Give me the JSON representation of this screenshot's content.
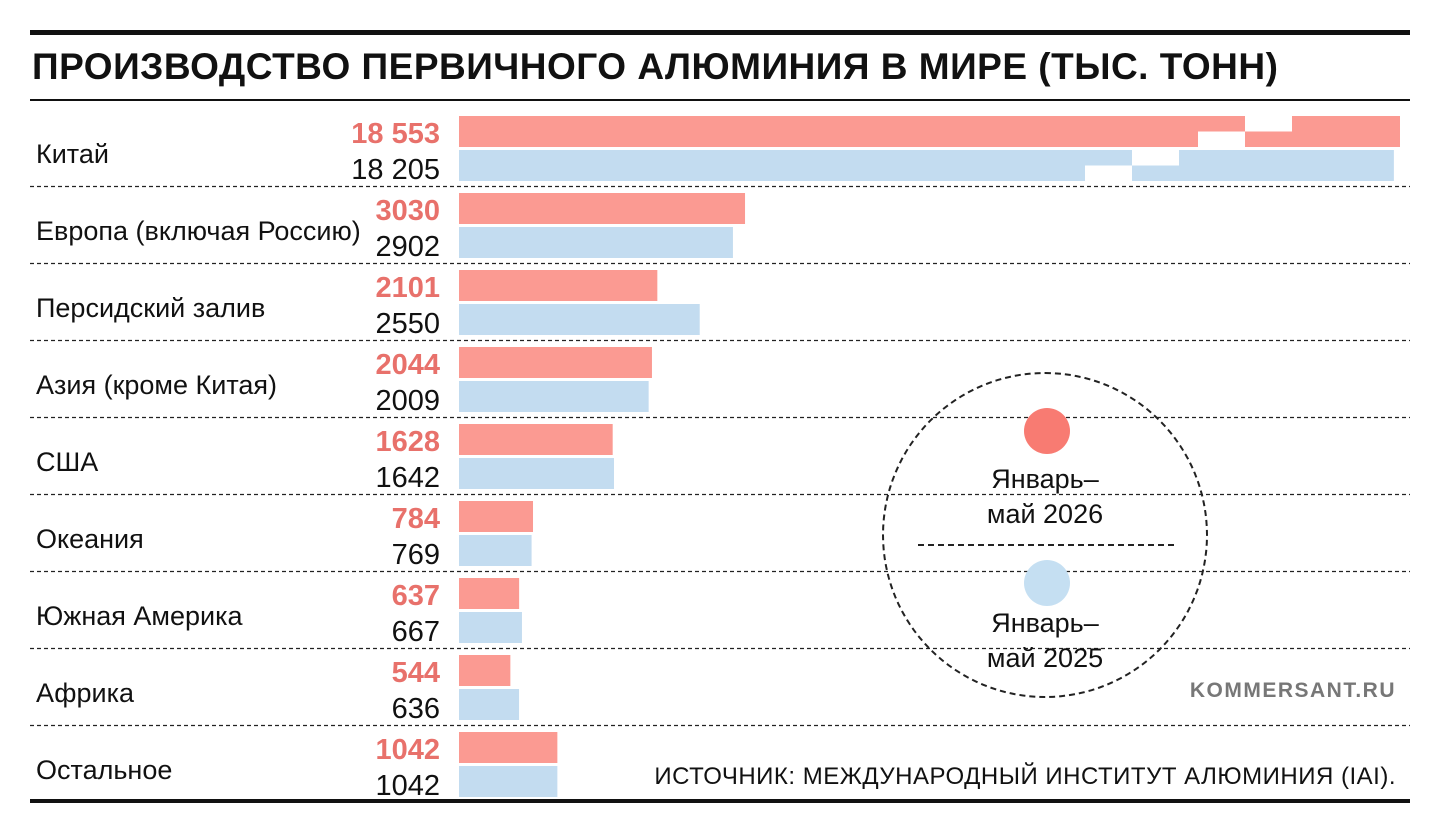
{
  "title": "ПРОИЗВОДСТВО ПЕРВИЧНОГО АЛЮМИНИЯ В МИРЕ (ТЫС. ТОНН)",
  "colors": {
    "series_2026": "#fb9a92",
    "series_2026_label": "#e8716b",
    "series_2025": "#c3dcf0",
    "legend_2026_dot": "#f87b72",
    "legend_2025_dot": "#c5dff2"
  },
  "legend": {
    "item1": "Январь–май 2026",
    "item2": "Январь–май 2025"
  },
  "credit": "KOMMERSANT.RU",
  "source": "ИСТОЧНИК: МЕЖДУНАРОДНЫЙ ИНСТИТУТ АЛЮМИНИЯ (IAI).",
  "chart_data": {
    "type": "bar",
    "orientation": "horizontal",
    "title": "ПРОИЗВОДСТВО ПЕРВИЧНОГО АЛЮМИНИЯ В МИРЕ (ТЫС. ТОНН)",
    "categories": [
      "Китай",
      "Европа (включая Россию)",
      "Персидский залив",
      "Азия (кроме Китая)",
      "США",
      "Океания",
      "Южная Америка",
      "Африка",
      "Остальное"
    ],
    "series": [
      {
        "name": "Январь–май 2026",
        "values": [
          18553,
          3030,
          2101,
          2044,
          1628,
          784,
          637,
          544,
          1042
        ],
        "labels": [
          "18 553",
          "3030",
          "2101",
          "2044",
          "1628",
          "784",
          "637",
          "544",
          "1042"
        ]
      },
      {
        "name": "Январь–май 2025",
        "values": [
          18205,
          2902,
          2550,
          2009,
          1642,
          769,
          667,
          636,
          1042
        ],
        "labels": [
          "18 205",
          "2902",
          "2550",
          "2009",
          "1642",
          "769",
          "667",
          "636",
          "1042"
        ]
      }
    ],
    "axis_break": true,
    "grid": false,
    "legend_position": "bottom-right"
  }
}
